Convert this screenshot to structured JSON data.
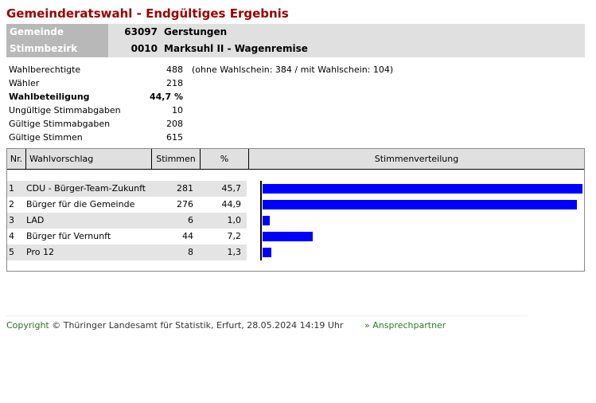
{
  "title": "Gemeinderatswahl - Endgültiges Ergebnis",
  "header": {
    "gemeinde_label": "Gemeinde",
    "gemeinde_code": "63097",
    "gemeinde_name": "Gerstungen",
    "bezirk_label": "Stimmbezirk",
    "bezirk_code": "0010",
    "bezirk_name": "Marksuhl II - Wagenremise"
  },
  "stats": [
    {
      "label": "Wahlberechtigte",
      "value": "488",
      "note": "(ohne Wahlschein: 384 / mit Wahlschein: 104)"
    },
    {
      "label": "Wähler",
      "value": "218"
    },
    {
      "label": "Wahlbeteiligung",
      "value": "44,7 %"
    },
    {
      "label": "Ungültige Stimmabgaben",
      "value": "10"
    },
    {
      "label": "Gültige Stimmabgaben",
      "value": "208"
    },
    {
      "label": "Gültige Stimmen",
      "value": "615"
    }
  ],
  "table": {
    "headers": {
      "nr": "Nr.",
      "name": "Wahlvorschlag",
      "votes": "Stimmen",
      "pct": "%",
      "dist": "Stimmenverteilung"
    },
    "rows": [
      {
        "nr": "1",
        "name": "CDU - Bürger-Team-Zukunft",
        "votes": "281",
        "pct": "45,7",
        "share": 45.7
      },
      {
        "nr": "2",
        "name": "Bürger für die Gemeinde",
        "votes": "276",
        "pct": "44,9",
        "share": 44.9
      },
      {
        "nr": "3",
        "name": "LAD",
        "votes": "6",
        "pct": "1,0",
        "share": 1.0
      },
      {
        "nr": "4",
        "name": "Bürger für Vernunft",
        "votes": "44",
        "pct": "7,2",
        "share": 7.2
      },
      {
        "nr": "5",
        "name": "Pro 12",
        "votes": "8",
        "pct": "1,3",
        "share": 1.3
      }
    ]
  },
  "colors": {
    "bar": "#0000ff",
    "title": "#990000"
  },
  "footer": {
    "copyright_word": "Copyright",
    "copyright_rest": " © Thüringer Landesamt für Statistik, Erfurt, 28.05.2024 14:19 Uhr",
    "contact": "» Ansprechpartner"
  }
}
